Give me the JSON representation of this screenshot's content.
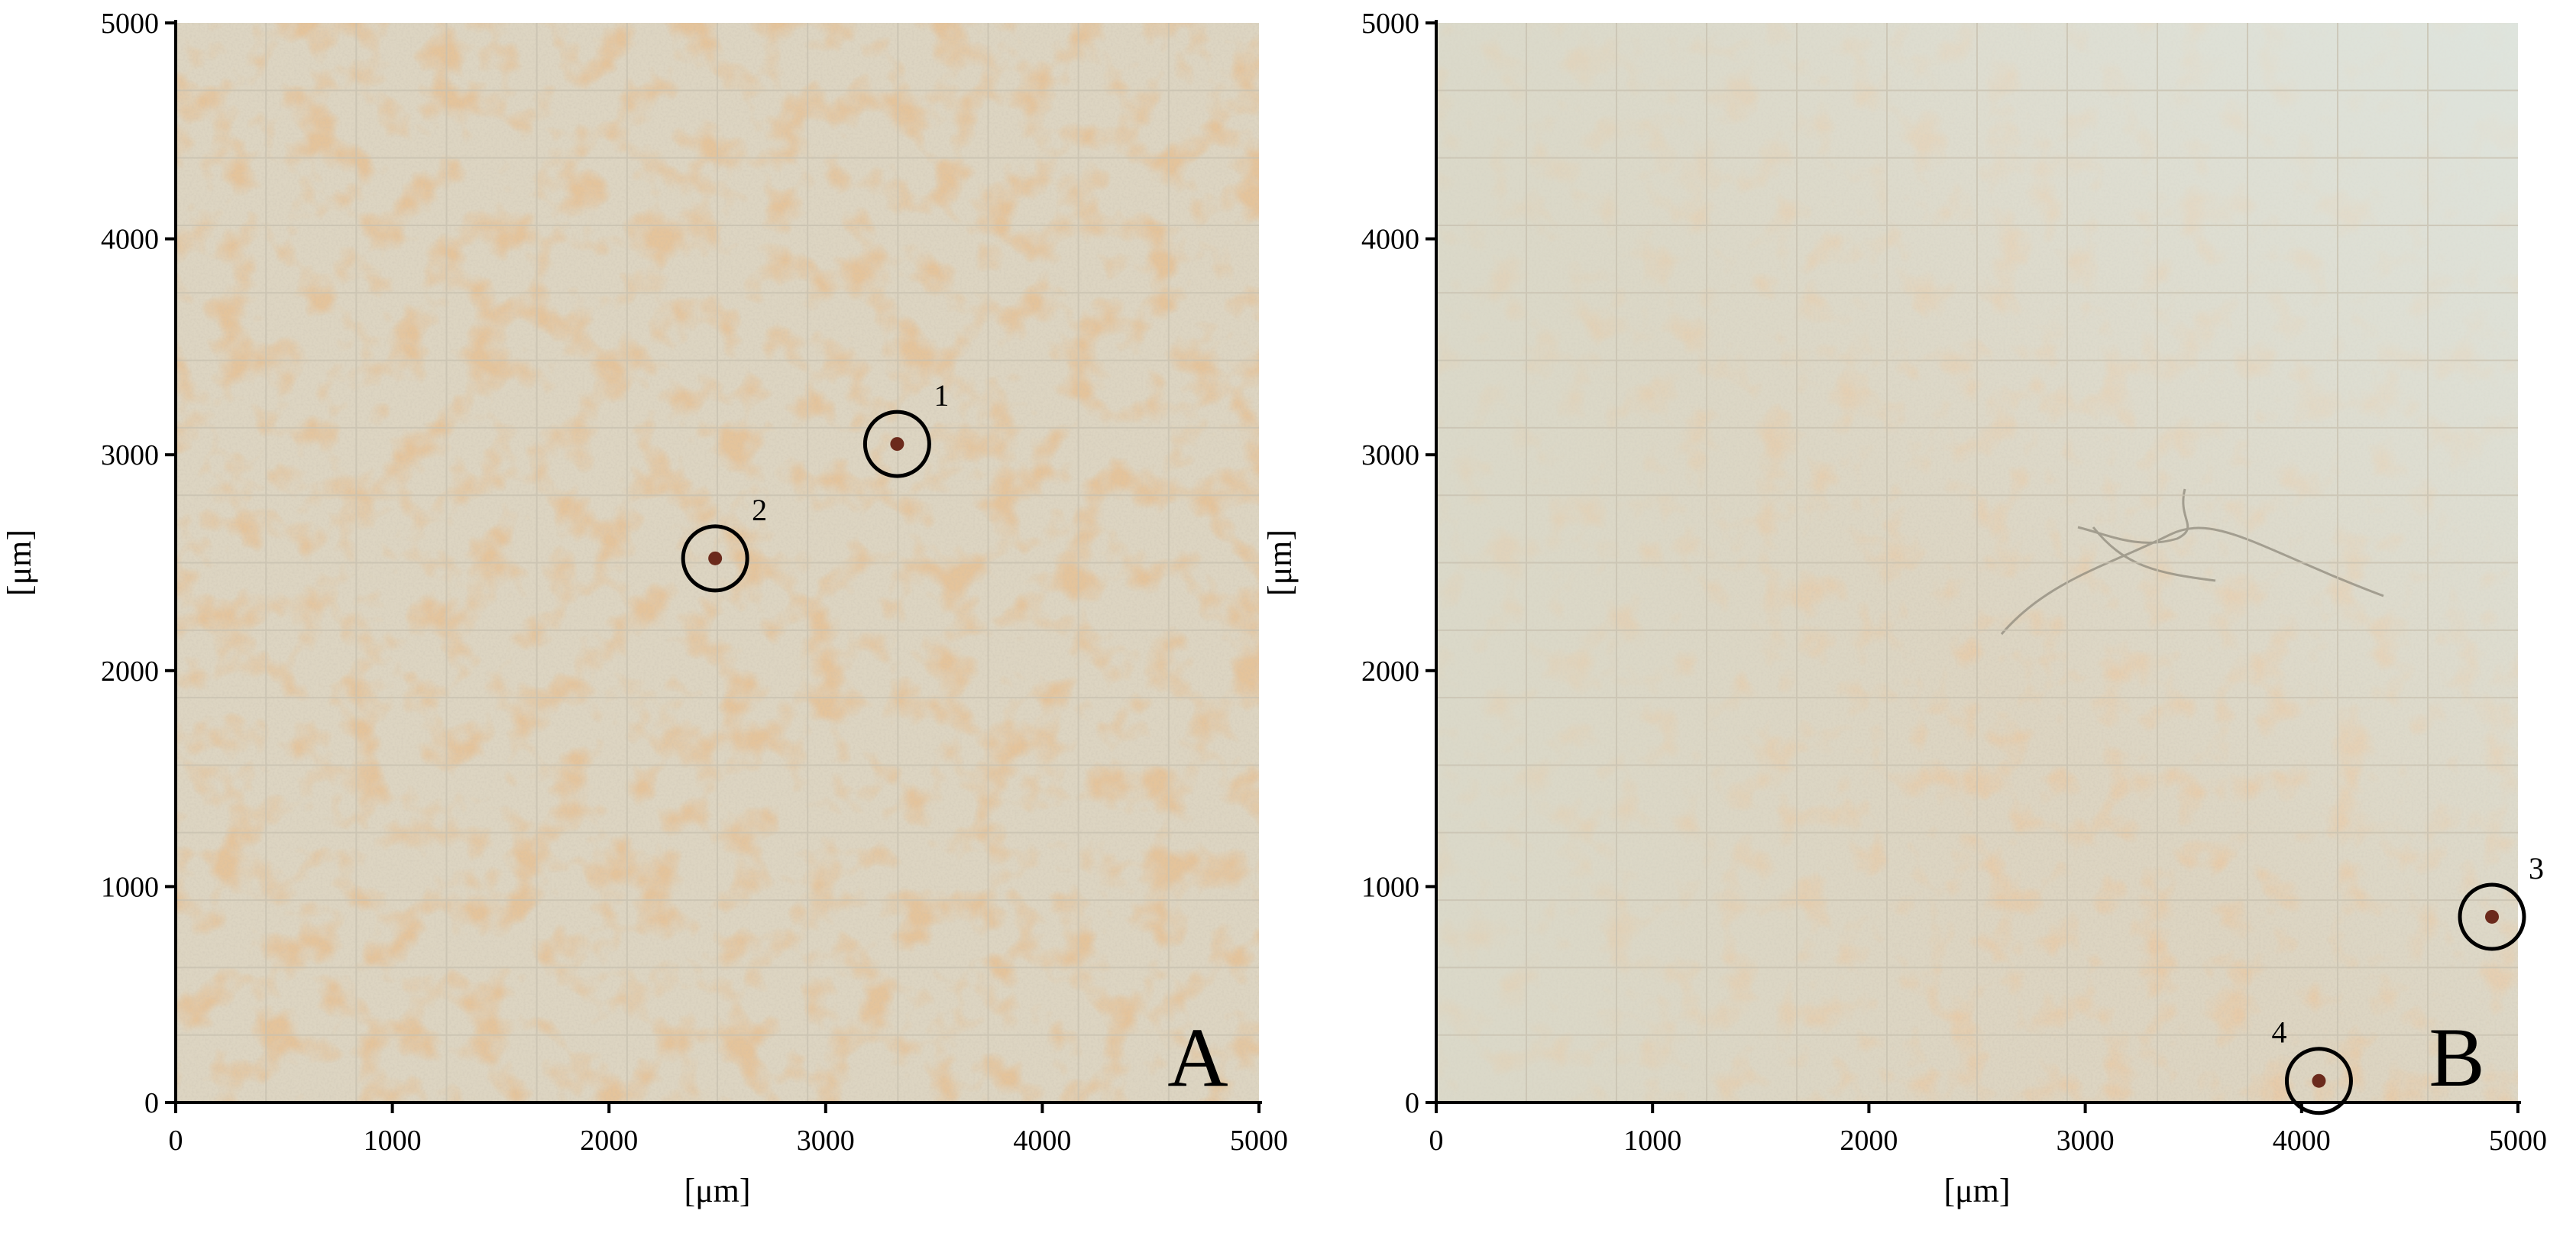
{
  "figure": {
    "panels": [
      {
        "letter": "A",
        "x_axis_label": "[μm]",
        "y_axis_label": "[μm]",
        "x_ticks": [
          "0",
          "1000",
          "2000",
          "3000",
          "4000",
          "5000"
        ],
        "y_ticks": [
          "0",
          "1000",
          "2000",
          "3000",
          "4000",
          "5000"
        ],
        "markers": [
          {
            "number": "1",
            "x_um": 3330,
            "y_um": 3050
          },
          {
            "number": "2",
            "x_um": 2490,
            "y_um": 2520
          }
        ]
      },
      {
        "letter": "B",
        "x_axis_label": "[μm]",
        "y_axis_label": "[μm]",
        "x_ticks": [
          "0",
          "1000",
          "2000",
          "3000",
          "4000",
          "5000"
        ],
        "y_ticks": [
          "0",
          "1000",
          "2000",
          "3000",
          "4000",
          "5000"
        ],
        "markers": [
          {
            "number": "3",
            "x_um": 4880,
            "y_um": 860
          },
          {
            "number": "4",
            "x_um": 4080,
            "y_um": 100
          }
        ]
      }
    ],
    "colors": {
      "background": "#ddd5c2",
      "particles": "#d6a779",
      "tile_lines": "#c8c1b0",
      "marker": "#000000"
    }
  }
}
